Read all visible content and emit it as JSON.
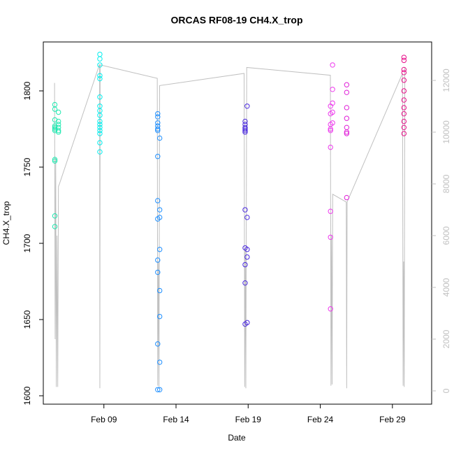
{
  "chart_data": {
    "type": "scatter",
    "title": "ORCAS RF08-19 CH4.X_trop",
    "x_label": "Date",
    "y_label": "CH4.X_trop",
    "xlim": [
      4.8,
      31.72
    ],
    "ylim": [
      1594.5,
      1832.1
    ],
    "y2lim": [
      -514,
      13486
    ],
    "xticks": [
      {
        "value": 9,
        "label": "Feb 09"
      },
      {
        "value": 14,
        "label": "Feb 14"
      },
      {
        "value": 19,
        "label": "Feb 19"
      },
      {
        "value": 24,
        "label": "Feb 24"
      },
      {
        "value": 29,
        "label": "Feb 29"
      }
    ],
    "yticks": [
      1600,
      1650,
      1700,
      1750,
      1800
    ],
    "y2ticks": [
      0,
      2000,
      4000,
      6000,
      8000,
      10000,
      12000
    ],
    "series": [
      {
        "color": "#20e8b0",
        "x": [
          5.6,
          5.6,
          5.6,
          5.6,
          5.6,
          5.6,
          5.6,
          5.6,
          5.6,
          5.6,
          5.6,
          5.85,
          5.85,
          5.85,
          5.85,
          5.85,
          5.85
        ],
        "values": [
          1791,
          1788,
          1781,
          1777,
          1776,
          1775,
          1774,
          1755,
          1754,
          1718,
          1711,
          1786,
          1780,
          1778,
          1776,
          1774,
          1773
        ]
      },
      {
        "color": "#00eeee",
        "x": [
          8.72,
          8.72,
          8.72,
          8.72,
          8.72,
          8.72,
          8.72,
          8.72,
          8.72,
          8.72,
          8.72,
          8.72,
          8.72,
          8.72,
          8.72,
          8.72
        ],
        "values": [
          1824,
          1821,
          1817,
          1810,
          1808,
          1796,
          1790,
          1787,
          1784,
          1780,
          1778,
          1776,
          1774,
          1772,
          1766,
          1760
        ]
      },
      {
        "color": "#1e8fff",
        "x": [
          12.73,
          12.73,
          12.73,
          12.73,
          12.73,
          12.73,
          12.73,
          12.73,
          12.73,
          12.73,
          12.73,
          12.73,
          12.73,
          12.87,
          12.87,
          12.87,
          12.87,
          12.87,
          12.87,
          12.87,
          12.87
        ],
        "values": [
          1785,
          1783,
          1779,
          1777,
          1775,
          1774,
          1757,
          1728,
          1716,
          1689,
          1681,
          1634,
          1604,
          1769,
          1722,
          1717,
          1696,
          1669,
          1652,
          1622,
          1604
        ]
      },
      {
        "color": "#4b2ae0",
        "x": [
          18.79,
          18.79,
          18.79,
          18.79,
          18.79,
          18.79,
          18.79,
          18.79,
          18.79,
          18.79,
          18.79,
          18.93,
          18.93,
          18.93,
          18.93,
          18.93
        ],
        "values": [
          1780,
          1778,
          1776,
          1775,
          1774,
          1773,
          1722,
          1697,
          1686,
          1674,
          1647,
          1790,
          1717,
          1696,
          1691,
          1648
        ]
      },
      {
        "color": "#ee38ee",
        "x": [
          24.71,
          24.71,
          24.71,
          24.71,
          24.71,
          24.71,
          24.71,
          24.71,
          24.71,
          24.85,
          24.85,
          24.85,
          24.85,
          24.85
        ],
        "values": [
          1790,
          1785,
          1778,
          1775,
          1774,
          1763,
          1721,
          1704,
          1657,
          1817,
          1801,
          1792,
          1786,
          1779
        ]
      },
      {
        "color": "#e020d8",
        "x": [
          25.83,
          25.83,
          25.83,
          25.83,
          25.83,
          25.83,
          25.83,
          25.83
        ],
        "values": [
          1804,
          1799,
          1789,
          1782,
          1776,
          1773,
          1772,
          1730
        ]
      },
      {
        "color": "#e8108a",
        "x": [
          29.8,
          29.8,
          29.8,
          29.8,
          29.8,
          29.8,
          29.8,
          29.8,
          29.8,
          29.8,
          29.8,
          29.8
        ],
        "values": [
          1822,
          1820,
          1814,
          1812,
          1807,
          1800,
          1794,
          1789,
          1785,
          1780,
          1776,
          1772
        ]
      },
      {
        "type": "line",
        "axis": "y2",
        "color": "#c0c0c0",
        "x": [
          5.58,
          5.62,
          5.66,
          5.7,
          5.75,
          5.8,
          5.85,
          5.92,
          8.7,
          8.72,
          8.74,
          12.7,
          12.73,
          12.78,
          12.82,
          12.86,
          18.72,
          18.76,
          18.8,
          18.84,
          18.9,
          24.7,
          24.74,
          24.78,
          24.82,
          24.86,
          25.8,
          25.83,
          25.86,
          29.7,
          29.74,
          29.78,
          29.82,
          29.86
        ],
        "values": [
          11900,
          2000,
          9000,
          150,
          6000,
          150,
          7900,
          8000,
          12620,
          100,
          12600,
          12080,
          200,
          5000,
          150,
          11800,
          12270,
          150,
          5500,
          100,
          12500,
          12200,
          200,
          6000,
          250,
          7600,
          7300,
          100,
          7300,
          12270,
          200,
          5000,
          150,
          12500
        ]
      }
    ]
  }
}
